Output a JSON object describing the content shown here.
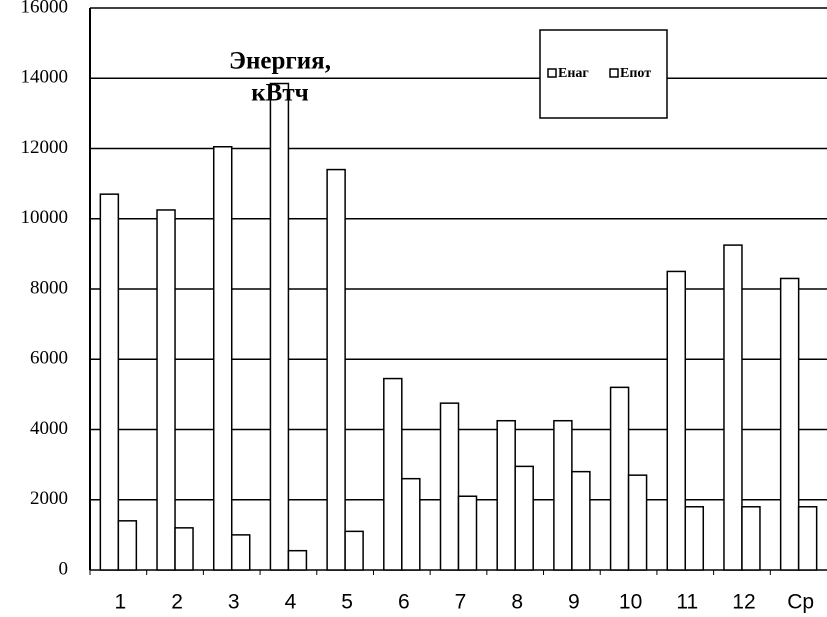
{
  "chart_data": {
    "type": "bar",
    "title": [
      "Энергия,",
      "кВтч"
    ],
    "categories": [
      "1",
      "2",
      "3",
      "4",
      "5",
      "6",
      "7",
      "8",
      "9",
      "10",
      "11",
      "12",
      "Ср"
    ],
    "series": [
      {
        "name": "Енаг",
        "color": "#ffffff",
        "values": [
          10700,
          10250,
          12050,
          13850,
          11400,
          5450,
          4750,
          4250,
          4250,
          5200,
          8500,
          9250,
          8300
        ]
      },
      {
        "name": "Епот",
        "color": "#ffffff",
        "values": [
          1400,
          1200,
          1000,
          550,
          1100,
          2600,
          2100,
          2950,
          2800,
          2700,
          1800,
          1800,
          1800
        ]
      }
    ],
    "ylim": [
      0,
      16000
    ],
    "yticks": [
      0,
      2000,
      4000,
      6000,
      8000,
      10000,
      12000,
      14000,
      16000
    ],
    "grid": true,
    "legend": "top-right"
  }
}
